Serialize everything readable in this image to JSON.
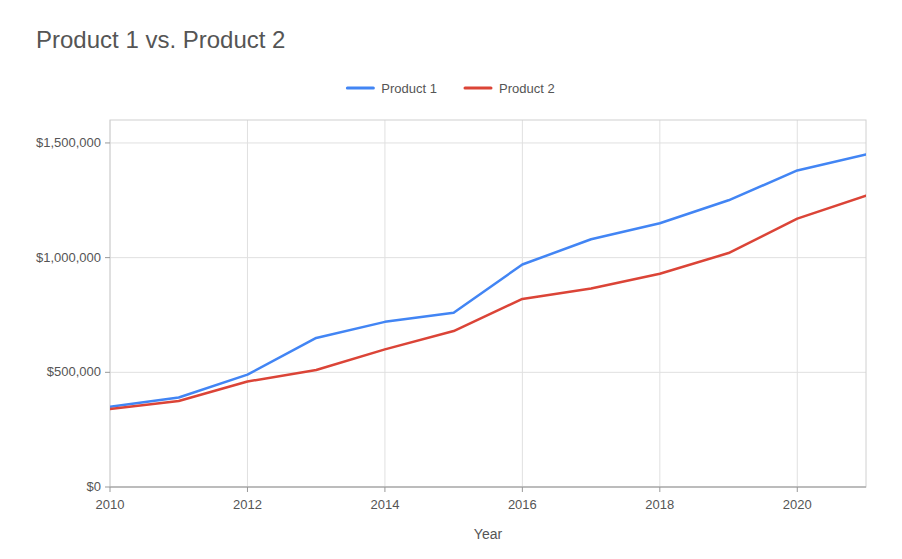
{
  "chart_data": {
    "type": "line",
    "title": "Product 1 vs. Product 2",
    "xlabel": "Year",
    "x": [
      2010,
      2011,
      2012,
      2013,
      2014,
      2015,
      2016,
      2017,
      2018,
      2019,
      2020,
      2021
    ],
    "series": [
      {
        "name": "Product 1",
        "color": "#4285f4",
        "values": [
          350000,
          390000,
          490000,
          650000,
          720000,
          760000,
          970000,
          1080000,
          1150000,
          1250000,
          1380000,
          1450000
        ]
      },
      {
        "name": "Product 2",
        "color": "#db4437",
        "values": [
          340000,
          375000,
          460000,
          510000,
          600000,
          680000,
          820000,
          865000,
          930000,
          1020000,
          1170000,
          1270000
        ]
      }
    ],
    "xlim": [
      2010,
      2021
    ],
    "xticks": [
      2010,
      2012,
      2014,
      2016,
      2018,
      2020
    ],
    "ylim": [
      0,
      1600000
    ],
    "yticks": [
      {
        "value": 0,
        "label": "$0"
      },
      {
        "value": 500000,
        "label": "$500,000"
      },
      {
        "value": 1000000,
        "label": "$1,000,000"
      },
      {
        "value": 1500000,
        "label": "$1,500,000"
      }
    ],
    "grid": true,
    "legend": "top"
  }
}
